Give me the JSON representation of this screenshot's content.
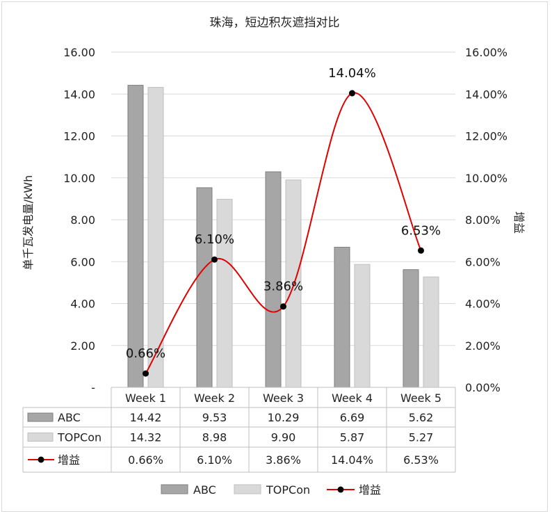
{
  "chart_data": {
    "type": "bar",
    "title": "珠海，短边积灰遮挡对比",
    "categories": [
      "Week 1",
      "Week 2",
      "Week 3",
      "Week 4",
      "Week 5"
    ],
    "series": [
      {
        "name": "ABC",
        "kind": "bar",
        "axis": "left",
        "color": "#a6a6a6",
        "values": [
          14.42,
          9.53,
          10.29,
          6.69,
          5.62
        ],
        "table_values": [
          "14.42",
          "9.53",
          "10.29",
          "6.69",
          "5.62"
        ]
      },
      {
        "name": "TOPCon",
        "kind": "bar",
        "axis": "left",
        "color": "#d9d9d9",
        "values": [
          14.32,
          8.98,
          9.9,
          5.87,
          5.27
        ],
        "table_values": [
          "14.32",
          "8.98",
          "9.90",
          "5.87",
          "5.27"
        ]
      },
      {
        "name": "增益",
        "kind": "line",
        "axis": "right",
        "color": "#e00000",
        "marker_color": "#000000",
        "values": [
          0.66,
          6.1,
          3.86,
          14.04,
          6.53
        ],
        "labels": [
          "0.66%",
          "6.10%",
          "3.86%",
          "14.04%",
          "6.53%"
        ],
        "table_values": [
          "0.66%",
          "6.10%",
          "3.86%",
          "14.04%",
          "6.53%"
        ]
      }
    ],
    "ylabel": "单千瓦发电量/kWh",
    "y2label": "增益",
    "ylim": [
      0,
      16
    ],
    "y2lim": [
      0,
      16
    ],
    "yticks": [
      "-",
      "2.00",
      "4.00",
      "6.00",
      "8.00",
      "10.00",
      "12.00",
      "14.00",
      "16.00"
    ],
    "y2ticks": [
      "0.00%",
      "2.00%",
      "4.00%",
      "6.00%",
      "8.00%",
      "10.00%",
      "12.00%",
      "14.00%",
      "16.00%"
    ],
    "grid": true,
    "legend": "bottom",
    "data_table": true
  }
}
